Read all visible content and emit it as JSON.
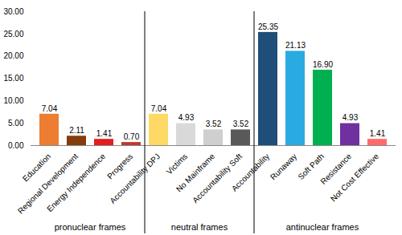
{
  "chart_data": {
    "type": "bar",
    "categories": [
      "Education",
      "Regional Development",
      "Energy Independence",
      "Progress",
      "Accountability DPJ",
      "Victims",
      "No Mainframe",
      "Accountability Soft",
      "Accountability",
      "Runaway",
      "Soft Path",
      "Resistance",
      "Not Cost Effective"
    ],
    "values": [
      7.04,
      2.11,
      1.41,
      0.7,
      7.04,
      4.93,
      3.52,
      3.52,
      25.35,
      21.13,
      16.9,
      4.93,
      1.41
    ],
    "value_labels": [
      "7.04",
      "2.11",
      "1.41",
      "0.70",
      "7.04",
      "4.93",
      "3.52",
      "3.52",
      "25.35",
      "21.13",
      "16.90",
      "4.93",
      "1.41"
    ],
    "colors": [
      "#ed7d31",
      "#843c0c",
      "#e41e1e",
      "#c0392b",
      "#ffd966",
      "#d9d9d9",
      "#cfcfcf",
      "#595959",
      "#1f4e79",
      "#29abe2",
      "#00b050",
      "#7030a0",
      "#ff6b6b"
    ],
    "ylim": [
      0,
      30
    ],
    "yticks": [
      {
        "value": 0,
        "label": "0.00"
      },
      {
        "value": 5,
        "label": "5.00"
      },
      {
        "value": 10,
        "label": "10.00"
      },
      {
        "value": 15,
        "label": "15.00"
      },
      {
        "value": 20,
        "label": "20.00"
      },
      {
        "value": 25,
        "label": "25.00"
      },
      {
        "value": 30,
        "label": "30.00"
      }
    ],
    "grid": false,
    "data_labels": true,
    "groups": [
      {
        "label": "pronuclear frames",
        "categories": [
          "Education",
          "Regional Development",
          "Energy Independence",
          "Progress"
        ]
      },
      {
        "label": "neutral frames",
        "categories": [
          "Accountability DPJ",
          "Victims",
          "No Mainframe",
          "Accountability Soft"
        ]
      },
      {
        "label": "antinuclear frames",
        "categories": [
          "Accountability",
          "Runaway",
          "Soft Path",
          "Resistance",
          "Not Cost Effective"
        ]
      }
    ]
  }
}
